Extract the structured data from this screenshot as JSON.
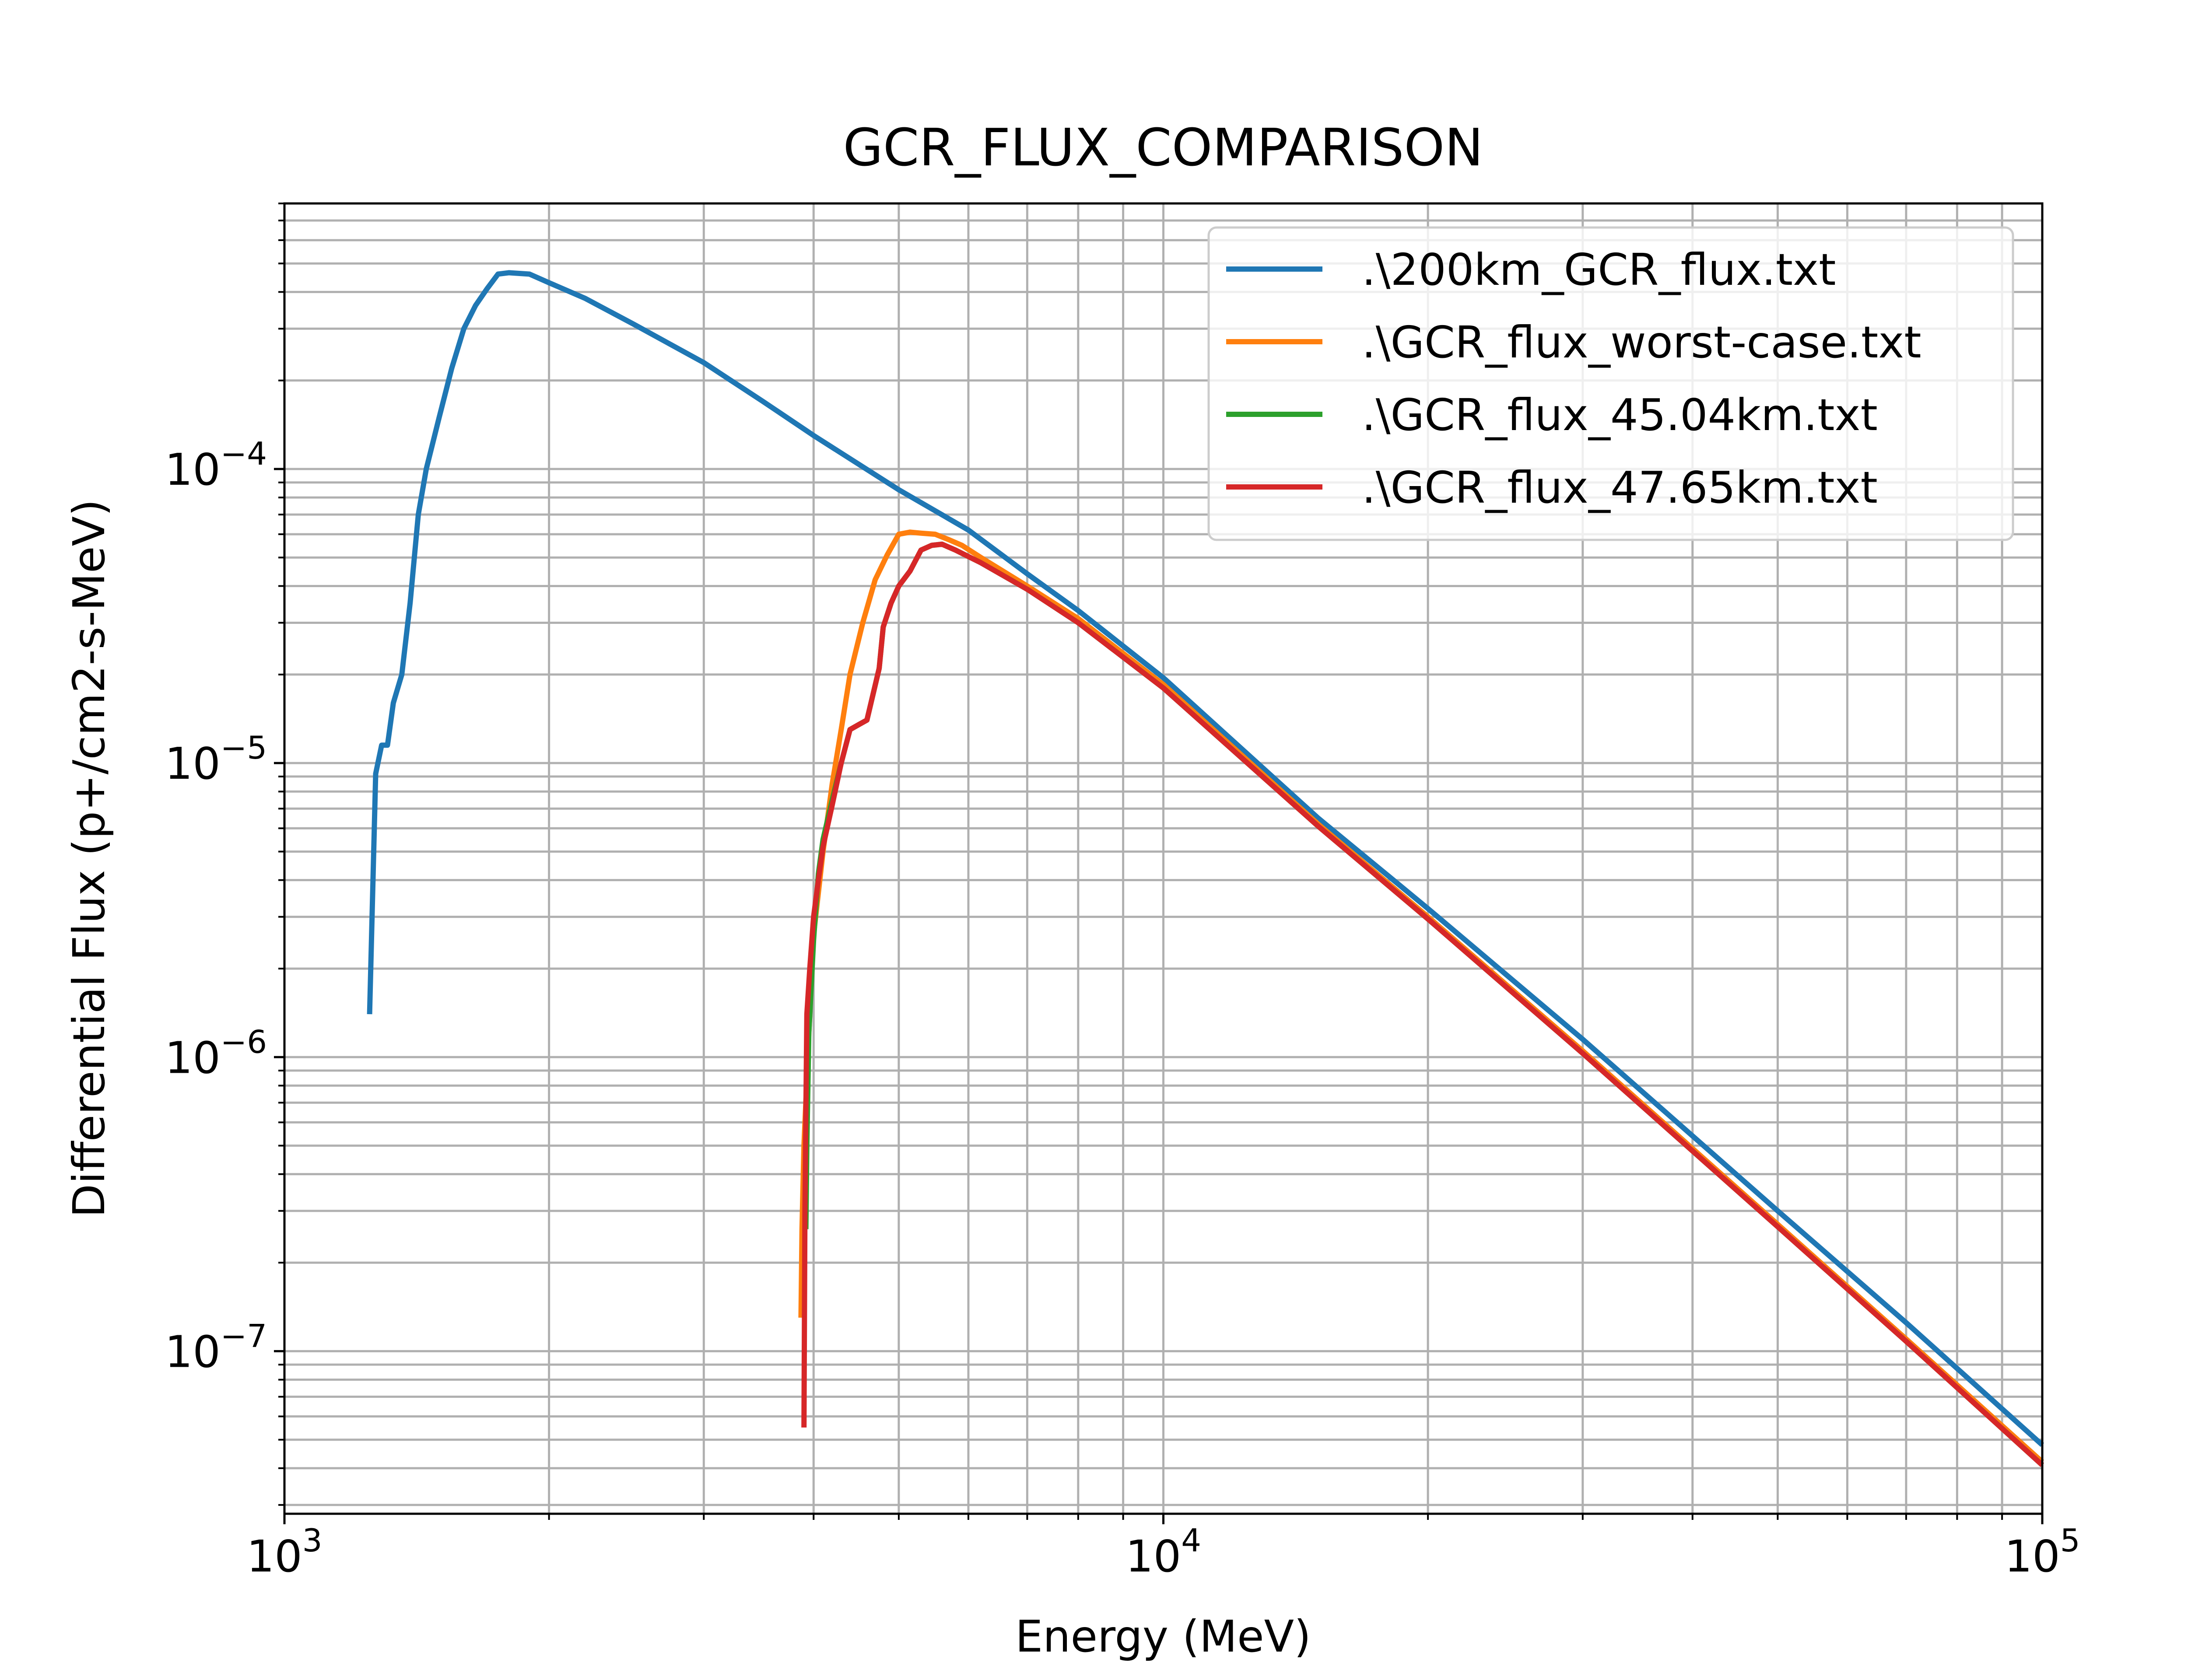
{
  "chart_data": {
    "type": "line",
    "title": "GCR_FLUX_COMPARISON",
    "xlabel": "Energy (MeV)",
    "ylabel": "Differential Flux (p+/cm2-s-MeV)",
    "xscale": "log",
    "yscale": "log",
    "xlim": [
      1000,
      100000
    ],
    "ylim": [
      2.8e-08,
      0.0008
    ],
    "grid": true,
    "legend_position": "top-right",
    "x_ticks": [
      {
        "value": 1000,
        "base": "10",
        "exp": "3"
      },
      {
        "value": 10000,
        "base": "10",
        "exp": "4"
      },
      {
        "value": 100000,
        "base": "10",
        "exp": "5"
      }
    ],
    "y_ticks": [
      {
        "value": 1e-07,
        "base": "10",
        "exp": "−7"
      },
      {
        "value": 1e-06,
        "base": "10",
        "exp": "−6"
      },
      {
        "value": 1e-05,
        "base": "10",
        "exp": "−5"
      },
      {
        "value": 0.0001,
        "base": "10",
        "exp": "−4"
      }
    ],
    "series": [
      {
        "name": ".\\200km_GCR_flux.txt",
        "color": "#1f77b4",
        "x": [
          1250,
          1270,
          1290,
          1310,
          1330,
          1360,
          1390,
          1420,
          1450,
          1500,
          1550,
          1600,
          1650,
          1700,
          1750,
          1800,
          1900,
          2000,
          2200,
          2500,
          3000,
          3500,
          4000,
          5000,
          6000,
          7000,
          8000,
          10000,
          15000,
          20000,
          30000,
          50000,
          70000,
          100000
        ],
        "y": [
          1.4e-06,
          9.2e-06,
          1.15e-05,
          1.15e-05,
          1.6e-05,
          2e-05,
          3.5e-05,
          7e-05,
          0.0001,
          0.00015,
          0.00022,
          0.0003,
          0.00036,
          0.00041,
          0.00046,
          0.000465,
          0.00046,
          0.00043,
          0.00038,
          0.00031,
          0.00023,
          0.00017,
          0.00013,
          8.5e-05,
          6.2e-05,
          4.4e-05,
          3.3e-05,
          1.95e-05,
          6.5e-06,
          3.2e-06,
          1.15e-06,
          3e-07,
          1.25e-07,
          4.8e-08
        ]
      },
      {
        "name": ".\\GCR_flux_worst-case.txt",
        "color": "#ff7f0e",
        "x": [
          3870,
          3880,
          3900,
          3950,
          4000,
          4100,
          4200,
          4300,
          4400,
          4550,
          4700,
          4850,
          5000,
          5150,
          5300,
          5500,
          5700,
          5900,
          6200,
          7000,
          8000,
          10000,
          15000,
          20000,
          30000,
          50000,
          70000,
          100000
        ],
        "y": [
          1.3e-07,
          2.6e-07,
          5e-07,
          1.2e-06,
          2.6e-06,
          5e-06,
          8.5e-06,
          1.3e-05,
          2e-05,
          3e-05,
          4.2e-05,
          5.1e-05,
          6e-05,
          6.1e-05,
          6.05e-05,
          6e-05,
          5.75e-05,
          5.5e-05,
          5e-05,
          4e-05,
          3.1e-05,
          1.85e-05,
          6.2e-06,
          3e-06,
          1.05e-06,
          2.7e-07,
          1.1e-07,
          4.2e-08
        ]
      },
      {
        "name": ".\\GCR_flux_45.04km.txt",
        "color": "#2ca02c",
        "x": [
          3920,
          3930,
          3950,
          4000,
          4050,
          4100,
          4200,
          4300,
          4400,
          4500,
          4600,
          4750,
          4800,
          4900,
          5000,
          5150,
          5300,
          5450,
          5600,
          5800,
          6200,
          7000,
          8000,
          10000,
          15000,
          20000,
          30000,
          50000,
          70000,
          100000
        ],
        "y": [
          2.6e-07,
          5e-07,
          1.2e-06,
          2.5e-06,
          4.2e-06,
          5.5e-06,
          7.5e-06,
          1e-05,
          1.3e-05,
          1.35e-05,
          1.4e-05,
          2.1e-05,
          2.9e-05,
          3.5e-05,
          4e-05,
          4.5e-05,
          5.3e-05,
          5.5e-05,
          5.55e-05,
          5.3e-05,
          4.8e-05,
          3.9e-05,
          3e-05,
          1.8e-05,
          6.1e-06,
          2.95e-06,
          1.03e-06,
          2.65e-07,
          1.08e-07,
          4.1e-08
        ]
      },
      {
        "name": ".\\GCR_flux_47.65km.txt",
        "color": "#d62728",
        "x": [
          3900,
          3910,
          3930,
          3960,
          4000,
          4050,
          4100,
          4200,
          4300,
          4400,
          4500,
          4600,
          4750,
          4800,
          4900,
          5000,
          5150,
          5300,
          5450,
          5600,
          5800,
          6200,
          7000,
          8000,
          10000,
          15000,
          20000,
          30000,
          50000,
          70000,
          100000
        ],
        "y": [
          5.5e-08,
          3e-07,
          1.4e-06,
          2e-06,
          3e-06,
          4e-06,
          5.2e-06,
          7.2e-06,
          1e-05,
          1.3e-05,
          1.35e-05,
          1.4e-05,
          2.1e-05,
          2.9e-05,
          3.5e-05,
          4e-05,
          4.5e-05,
          5.3e-05,
          5.5e-05,
          5.55e-05,
          5.3e-05,
          4.8e-05,
          3.9e-05,
          3e-05,
          1.8e-05,
          6.1e-06,
          2.95e-06,
          1.03e-06,
          2.65e-07,
          1.08e-07,
          4.1e-08
        ]
      }
    ]
  }
}
